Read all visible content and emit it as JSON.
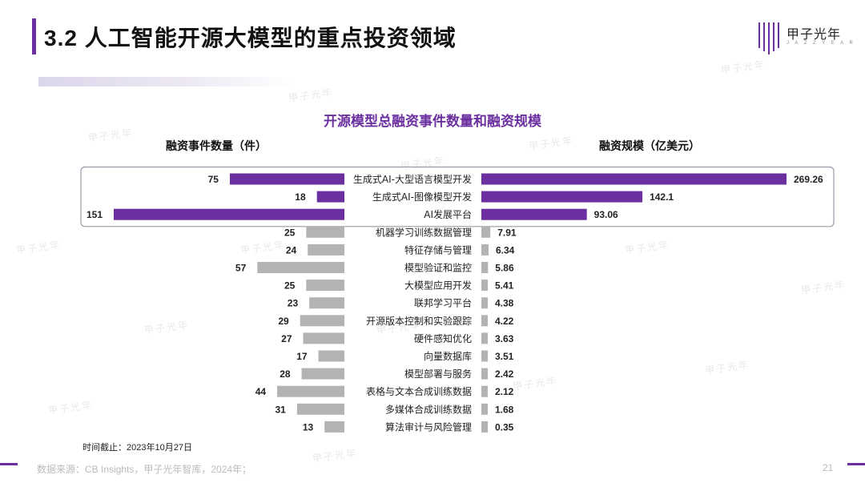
{
  "page": {
    "title": "3.2 人工智能开源大模型的重点投资领域",
    "brand": "甲子光年",
    "brand_sub": "J A Z Z Y E A R",
    "page_number": "21",
    "source": "数据来源：CB Insights，甲子光年智库，2024年；",
    "footnote": "时间截止：2023年10月27日",
    "accent_color": "#6b2fa0"
  },
  "chart_data": {
    "type": "bar",
    "title": "开源模型总融资事件数量和融资规模",
    "categories": [
      "生成式AI-大型语言模型开发",
      "生成式AI-图像模型开发",
      "AI发展平台",
      "机器学习训练数据管理",
      "特征存储与管理",
      "模型验证和监控",
      "大模型应用开发",
      "联邦学习平台",
      "开源版本控制和实验跟踪",
      "硬件感知优化",
      "向量数据库",
      "模型部署与服务",
      "表格与文本合成训练数据",
      "多媒体合成训练数据",
      "算法审计与风险管理"
    ],
    "series": [
      {
        "name": "融资事件数量（件）",
        "values": [
          75,
          18,
          151,
          25,
          24,
          57,
          25,
          23,
          29,
          27,
          17,
          28,
          44,
          31,
          13
        ]
      },
      {
        "name": "融资规模（亿美元）",
        "values": [
          269.26,
          142.1,
          93.06,
          7.91,
          6.34,
          5.86,
          5.41,
          4.38,
          4.22,
          3.63,
          3.51,
          2.42,
          2.12,
          1.68,
          0.35
        ]
      }
    ],
    "value_labels": {
      "count": [
        "75",
        "18",
        "151",
        "25",
        "24",
        "57",
        "25",
        "23",
        "29",
        "27",
        "17",
        "28",
        "44",
        "31",
        "13"
      ],
      "amount": [
        "269.26",
        "142.1",
        "93.06",
        "7.91",
        "6.34",
        "5.86",
        "5.41",
        "4.38",
        "4.22",
        "3.63",
        "3.51",
        "2.42",
        "2.12",
        "1.68",
        "0.35"
      ]
    },
    "highlighted": [
      "生成式AI-大型语言模型开发",
      "生成式AI-图像模型开发",
      "AI发展平台"
    ],
    "colors": {
      "highlight": "#6b2fa0",
      "other": "#b3b3b3"
    }
  }
}
